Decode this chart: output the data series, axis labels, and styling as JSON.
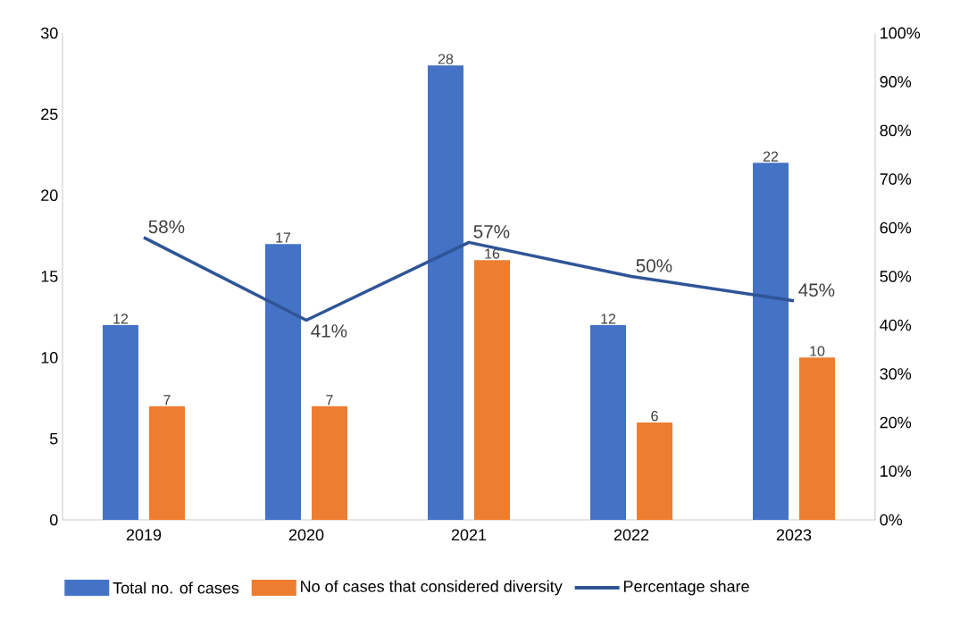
{
  "chart_data": {
    "type": "bar",
    "categories": [
      "2019",
      "2020",
      "2021",
      "2022",
      "2023"
    ],
    "series": [
      {
        "name": "Total no. of cases",
        "color": "#4472c4",
        "values": [
          12,
          17,
          28,
          12,
          22
        ],
        "value_labels": [
          "12",
          "17",
          "28",
          "12",
          "22"
        ]
      },
      {
        "name": "No of cases that considered diversity",
        "color": "#ed7d31",
        "values": [
          7,
          7,
          16,
          6,
          10
        ],
        "value_labels": [
          "7",
          "7",
          "16",
          "6",
          "10"
        ]
      },
      {
        "name": "Percentage share",
        "type": "line",
        "axis": "y2",
        "color": "#2f5597",
        "values": [
          58,
          41,
          57,
          50,
          45
        ],
        "value_labels": [
          "58%",
          "41%",
          "57%",
          "50%",
          "45%"
        ]
      }
    ],
    "ylim": [
      0,
      30
    ],
    "yticks": [
      0,
      5,
      10,
      15,
      20,
      25,
      30
    ],
    "y2lim": [
      0,
      100
    ],
    "y2ticks": [
      {
        "value": 0,
        "label": "0%"
      },
      {
        "value": 10,
        "label": "10%"
      },
      {
        "value": 20,
        "label": "20%"
      },
      {
        "value": 30,
        "label": "30%"
      },
      {
        "value": 40,
        "label": "40%"
      },
      {
        "value": 50,
        "label": "50%"
      },
      {
        "value": 60,
        "label": "60%"
      },
      {
        "value": 70,
        "label": "70%"
      },
      {
        "value": 80,
        "label": "80%"
      },
      {
        "value": 90,
        "label": "90%"
      },
      {
        "value": 100,
        "label": "100%"
      }
    ],
    "legend": "bottom",
    "grid": false
  }
}
